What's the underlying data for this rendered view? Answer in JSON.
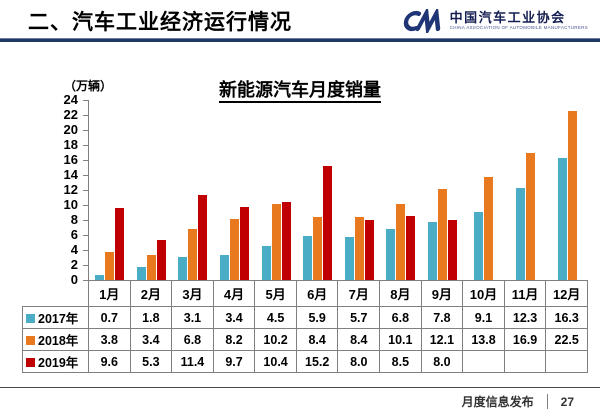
{
  "header": {
    "title": "二、汽车工业经济运行情况",
    "logo": {
      "org_cn": "中国汽车工业协会",
      "org_en": "CHINA ASSOCIATION OF AUTOMOBILE MANUFACTURERS",
      "brand_color": "#1F3575"
    }
  },
  "chart_data": {
    "type": "bar",
    "title": "新能源汽车月度销量",
    "unit_label": "（万辆）",
    "categories": [
      "1月",
      "2月",
      "3月",
      "4月",
      "5月",
      "6月",
      "7月",
      "8月",
      "9月",
      "10月",
      "11月",
      "12月"
    ],
    "series": [
      {
        "name": "2017年",
        "color": "#4BACC6",
        "values": [
          0.7,
          1.8,
          3.1,
          3.4,
          4.5,
          5.9,
          5.7,
          6.8,
          7.8,
          9.1,
          12.3,
          16.3
        ]
      },
      {
        "name": "2018年",
        "color": "#E8791E",
        "values": [
          3.8,
          3.4,
          6.8,
          8.2,
          10.2,
          8.4,
          8.4,
          10.1,
          12.1,
          13.8,
          16.9,
          22.5
        ]
      },
      {
        "name": "2019年",
        "color": "#C00000",
        "values": [
          9.6,
          5.3,
          11.4,
          9.7,
          10.4,
          15.2,
          8.0,
          8.5,
          8.0,
          null,
          null,
          null
        ]
      }
    ],
    "ylim": [
      0,
      24
    ],
    "ytick_step": 2,
    "grid": false,
    "legend_position": "table-rows-left",
    "value_decimals": 1
  },
  "footer": {
    "label": "月度信息发布",
    "page": "27"
  }
}
